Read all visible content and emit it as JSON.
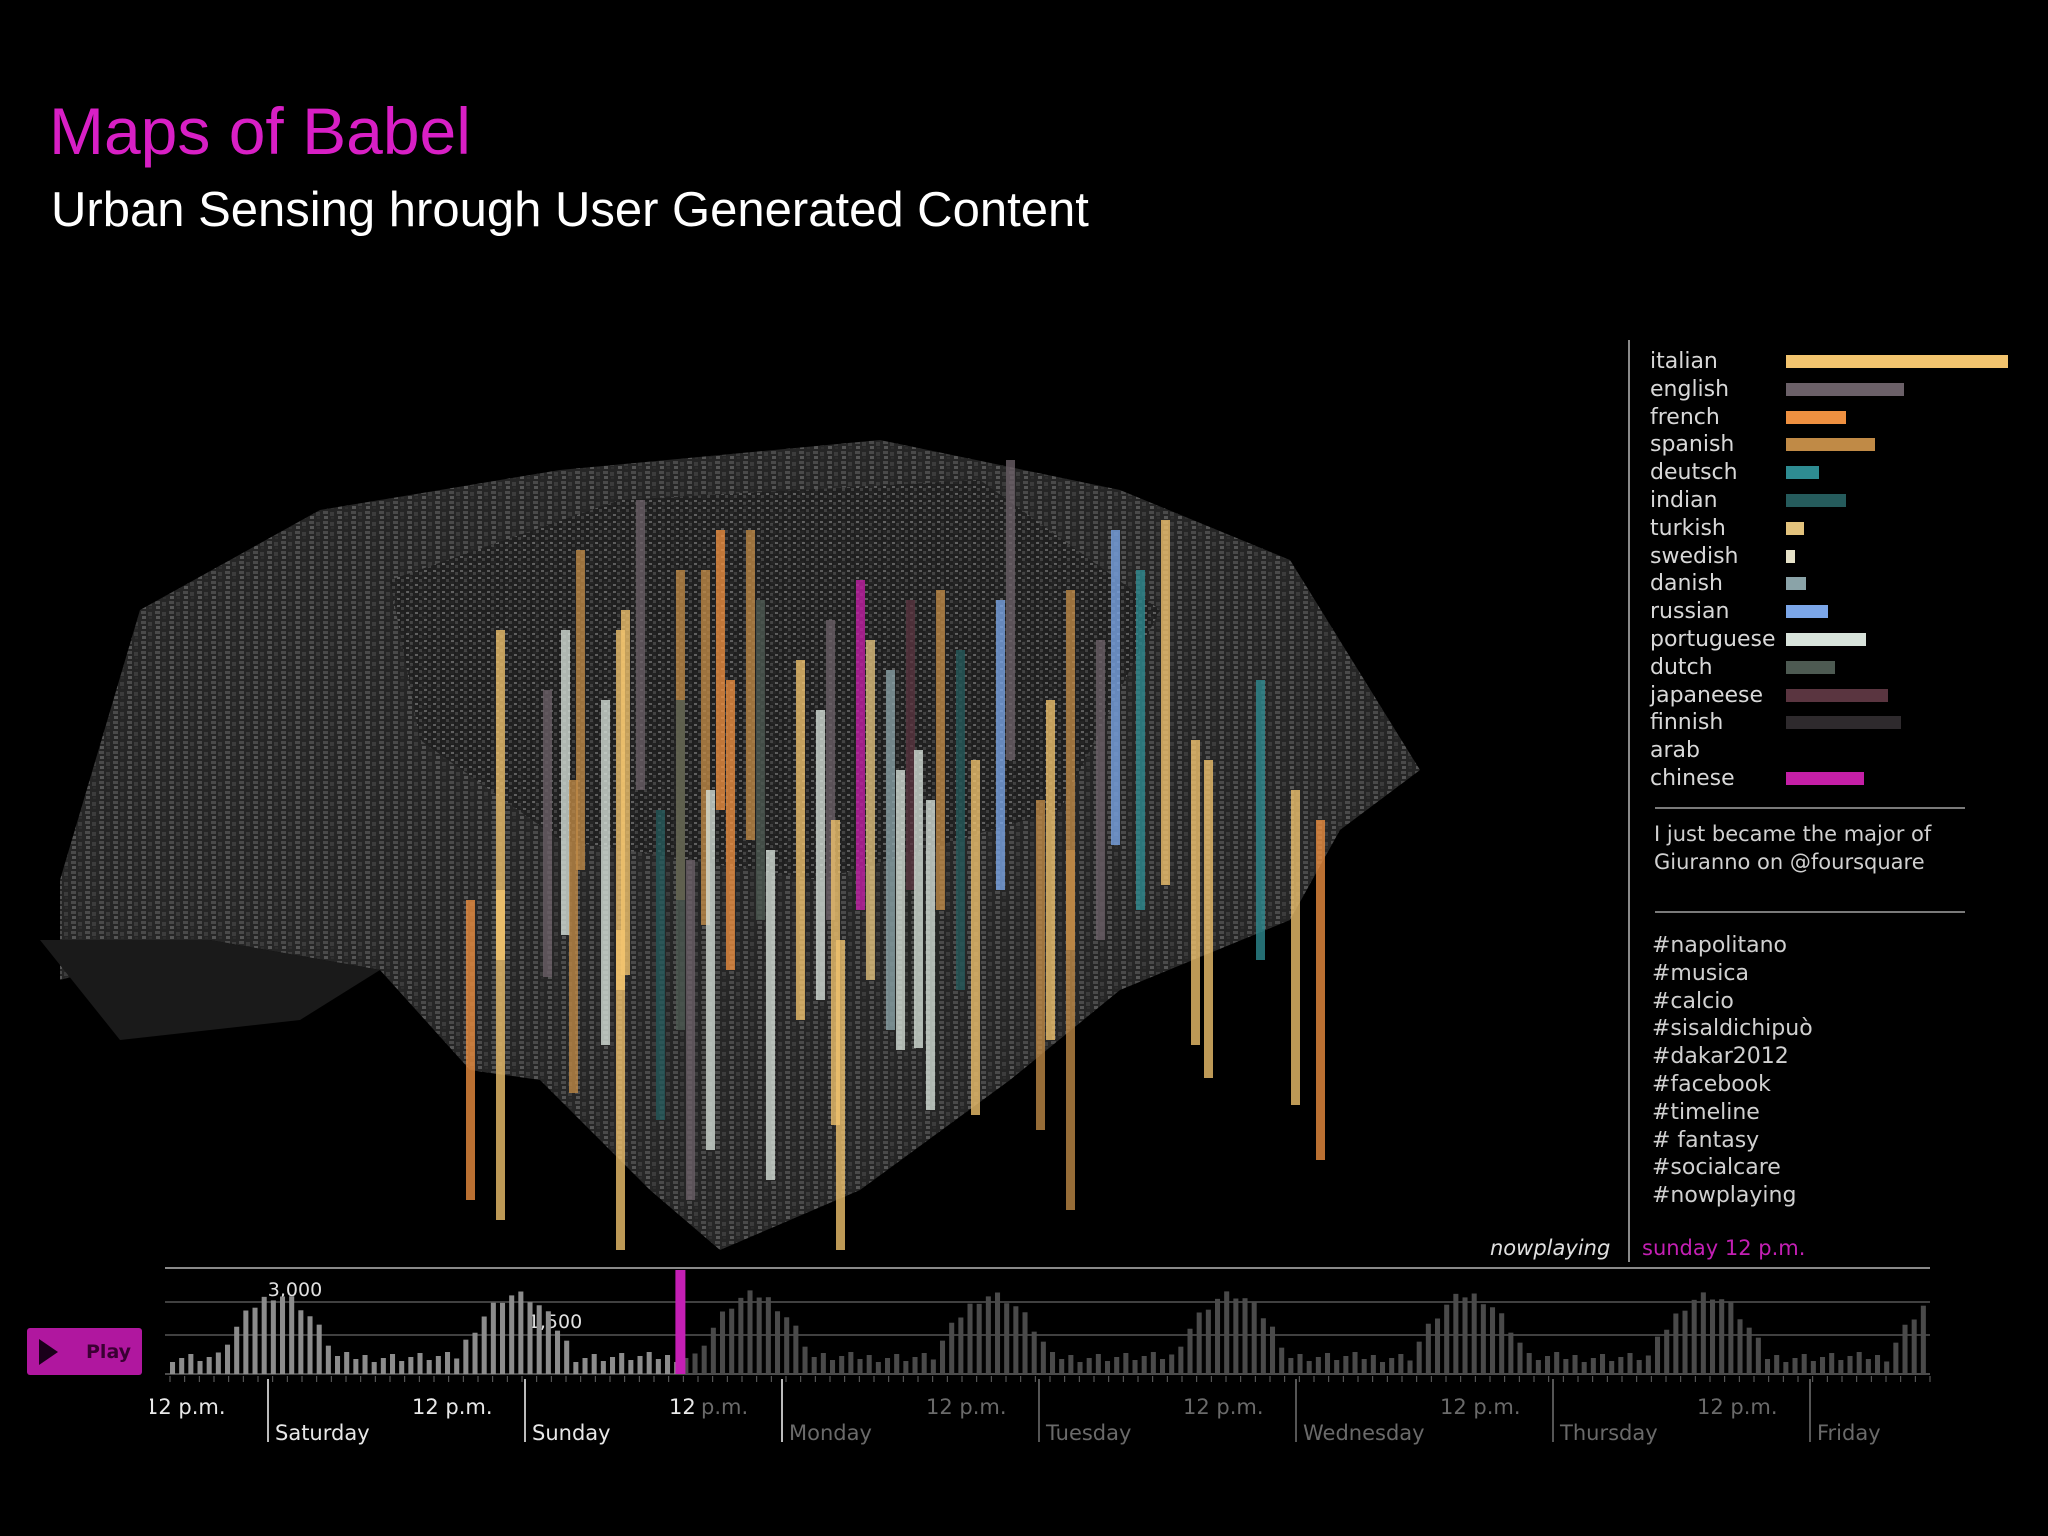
{
  "header": {
    "title": "Maps of Babel",
    "subtitle": "Urban Sensing hrough User Generated Content"
  },
  "colors": {
    "accent": "#d81fc5",
    "background": "#000000"
  },
  "legend": {
    "languages": [
      {
        "label": "italian",
        "value": 1.0,
        "color": "#f2c46e"
      },
      {
        "label": "english",
        "value": 0.53,
        "color": "#6b6068"
      },
      {
        "label": "french",
        "value": 0.27,
        "color": "#ee9040"
      },
      {
        "label": "spanish",
        "value": 0.4,
        "color": "#c08a46"
      },
      {
        "label": "deutsch",
        "value": 0.15,
        "color": "#2e8c92"
      },
      {
        "label": "indian",
        "value": 0.27,
        "color": "#255b5c"
      },
      {
        "label": "turkish",
        "value": 0.08,
        "color": "#e3c37d"
      },
      {
        "label": "swedish",
        "value": 0.04,
        "color": "#e6e2c8"
      },
      {
        "label": "danish",
        "value": 0.09,
        "color": "#8aa3a8"
      },
      {
        "label": "russian",
        "value": 0.19,
        "color": "#7ba6e8"
      },
      {
        "label": "portuguese",
        "value": 0.36,
        "color": "#d7e2da"
      },
      {
        "label": "dutch",
        "value": 0.22,
        "color": "#4d5a52"
      },
      {
        "label": "japaneese",
        "value": 0.46,
        "color": "#5a3540"
      },
      {
        "label": "finnish",
        "value": 0.52,
        "color": "#2e2a2d"
      },
      {
        "label": "arab",
        "value": 0,
        "color": "#000000"
      },
      {
        "label": "chinese",
        "value": 0.35,
        "color": "#c41fa6"
      }
    ],
    "tweet": "I just became the major of Giuranno on @foursquare",
    "hashtags": [
      "#napolitano",
      "#musica",
      "#calcio",
      "#sisaldichipuò",
      "#dakar2012",
      "#facebook",
      "#timeline",
      "# fantasy",
      "#socialcare",
      "#nowplaying"
    ]
  },
  "status": {
    "nowplaying": "nowplaying",
    "time": "sunday 12 p.m."
  },
  "timeline": {
    "play_label": "Play",
    "ref_labels": [
      "3,000",
      "1,500"
    ],
    "noon_label": "12 p.m.",
    "noon_label_split": {
      "a": "12",
      "b": "p.m."
    },
    "days": [
      "Saturday",
      "Sunday",
      "Monday",
      "Tuesday",
      "Wednesday",
      "Thursday",
      "Friday"
    ],
    "current_fraction": 0.29
  }
}
